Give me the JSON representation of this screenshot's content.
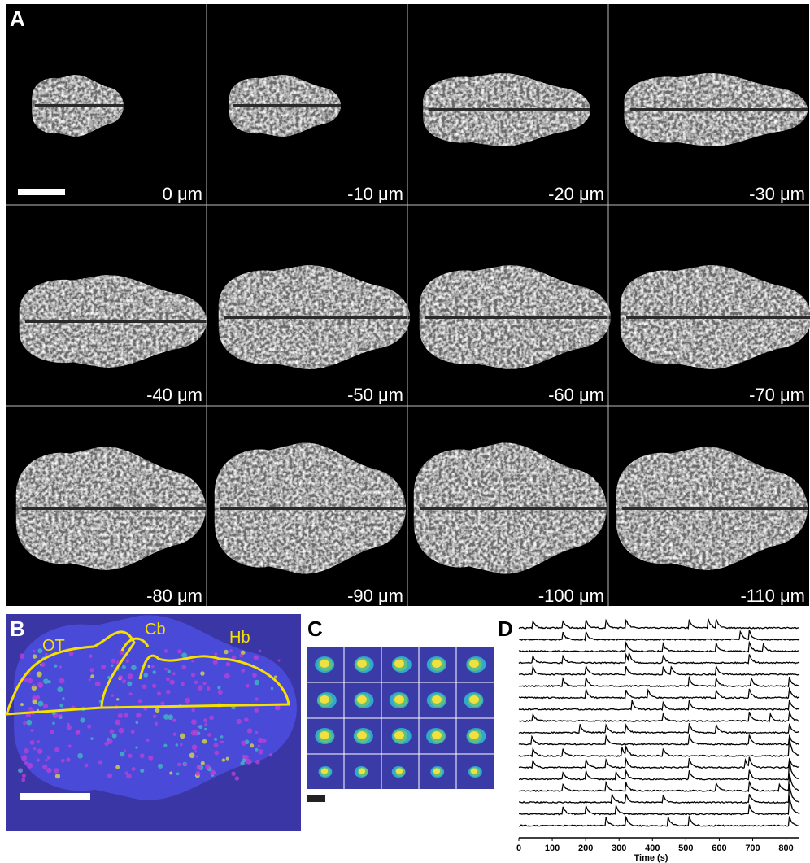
{
  "panel_a": {
    "label": "A",
    "depths": [
      "0 μm",
      "-10 μm",
      "-20 μm",
      "-30 μm",
      "-40 μm",
      "-50 μm",
      "-60 μm",
      "-70 μm",
      "-80 μm",
      "-90 μm",
      "-100 μm",
      "-110 μm"
    ]
  },
  "panel_b": {
    "label": "B",
    "regions": [
      "OT",
      "Cb",
      "Hb"
    ]
  },
  "panel_c": {
    "label": "C"
  },
  "panel_d": {
    "label": "D",
    "xlabel": "Time (s)",
    "xlim": [
      0,
      840
    ],
    "xticks": [
      0,
      100,
      200,
      300,
      400,
      500,
      600,
      700,
      800
    ]
  }
}
